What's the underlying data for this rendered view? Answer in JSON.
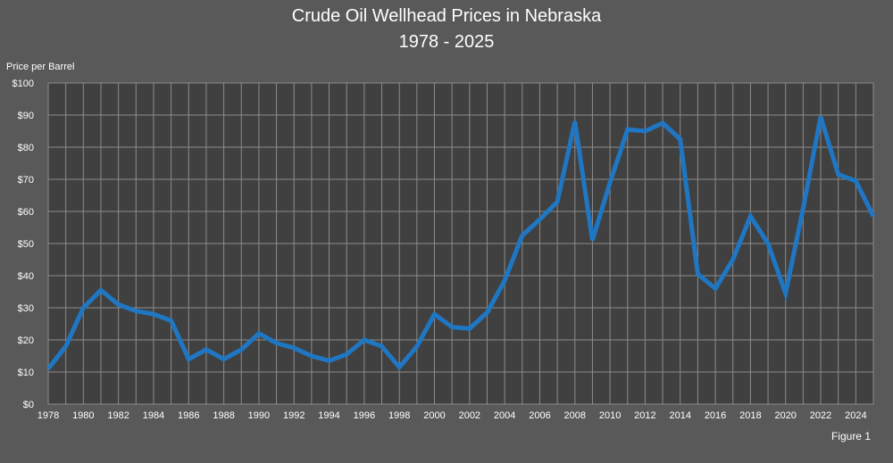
{
  "chart_data": {
    "type": "line",
    "title": "Crude Oil Wellhead Prices in Nebraska",
    "subtitle": "1978 - 2025",
    "ylabel": "Price per Barrel",
    "xlabel": "",
    "figure_label": "Figure 1",
    "ylim": [
      0,
      100
    ],
    "xlim": [
      1978,
      2025
    ],
    "grid": true,
    "y_ticks": [
      "$0",
      "$10",
      "$20",
      "$30",
      "$40",
      "$50",
      "$60",
      "$70",
      "$80",
      "$90",
      "$100"
    ],
    "x_ticks": [
      "1978",
      "1980",
      "1982",
      "1984",
      "1986",
      "1988",
      "1990",
      "1992",
      "1994",
      "1996",
      "1998",
      "2000",
      "2002",
      "2004",
      "2006",
      "2008",
      "2010",
      "2012",
      "2014",
      "2016",
      "2018",
      "2020",
      "2022",
      "2024"
    ],
    "series": [
      {
        "color": "#1f77c4",
        "x": [
          1978,
          1979,
          1980,
          1981,
          1982,
          1983,
          1984,
          1985,
          1986,
          1987,
          1988,
          1989,
          1990,
          1991,
          1992,
          1993,
          1994,
          1995,
          1996,
          1997,
          1998,
          1999,
          2000,
          2001,
          2002,
          2003,
          2004,
          2005,
          2006,
          2007,
          2008,
          2009,
          2010,
          2011,
          2012,
          2013,
          2014,
          2015,
          2016,
          2017,
          2018,
          2019,
          2020,
          2021,
          2022,
          2023,
          2024,
          2025
        ],
        "values": [
          11,
          18,
          30,
          35.5,
          31,
          29,
          28,
          26,
          14,
          17,
          14,
          17,
          22,
          19,
          17.5,
          15,
          13.5,
          15.5,
          20,
          18,
          11.5,
          18,
          28,
          24,
          23.5,
          28.5,
          38.5,
          52.5,
          57.5,
          63,
          88,
          51,
          69,
          85.5,
          85,
          87.5,
          82.5,
          40.5,
          36,
          45,
          58.5,
          50,
          34.5,
          61,
          89.5,
          71.5,
          69.5,
          58.5
        ]
      }
    ]
  }
}
